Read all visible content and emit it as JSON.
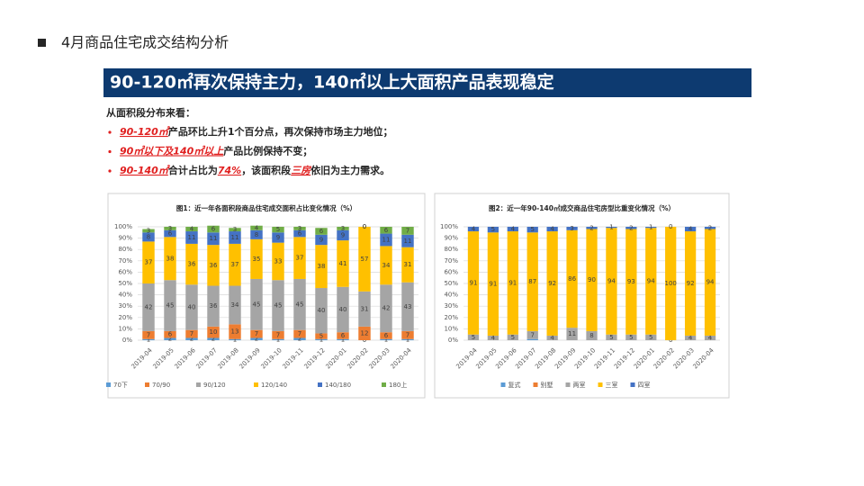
{
  "header": {
    "title": "4月商品住宅成交结构分析"
  },
  "banner": "90-120㎡再次保持主力，140㎡以上大面积产品表现稳定",
  "summary": {
    "heading": "从面积段分布来看：",
    "bullets": [
      [
        {
          "text": "90-120㎡",
          "highlight": true
        },
        {
          "text": "产品环比上升1个百分点，再次保持市场主力地位；"
        }
      ],
      [
        {
          "text": "90㎡以下及140㎡以上",
          "highlight": true
        },
        {
          "text": "产品比例保持不变；"
        }
      ],
      [
        {
          "text": "90-140㎡",
          "highlight": true
        },
        {
          "text": "合计占比为"
        },
        {
          "text": "74%",
          "highlight": true
        },
        {
          "text": "，该面积段"
        },
        {
          "text": "三房",
          "highlight": true
        },
        {
          "text": "依旧为主力需求。"
        }
      ]
    ]
  },
  "chart_data": [
    {
      "type": "stacked-bar",
      "title": "图1：近一年各面积段商品住宅成交面积占比变化情况（%）",
      "categories": [
        "2019-04",
        "2019-05",
        "2019-06",
        "2019-07",
        "2019-08",
        "2019-09",
        "2019-10",
        "2019-11",
        "2019-12",
        "2020-01",
        "2020-02",
        "2020-03",
        "2020-04"
      ],
      "series": [
        {
          "name": "70下",
          "color": "#5b9bd5",
          "labels": true,
          "values": [
            1,
            2,
            2,
            2,
            1,
            2,
            1,
            2,
            1,
            1,
            0,
            1,
            1
          ]
        },
        {
          "name": "70/90",
          "color": "#ed7d31",
          "labels": true,
          "values": [
            7,
            6,
            7,
            10,
            13,
            7,
            7,
            7,
            5,
            6,
            12,
            6,
            7
          ]
        },
        {
          "name": "90/120",
          "color": "#a5a5a5",
          "labels": true,
          "values": [
            42,
            45,
            40,
            36,
            34,
            45,
            45,
            45,
            40,
            40,
            31,
            42,
            43
          ]
        },
        {
          "name": "120/140",
          "color": "#ffc000",
          "labels": true,
          "values": [
            37,
            38,
            36,
            36,
            37,
            35,
            33,
            37,
            38,
            41,
            57,
            34,
            31
          ]
        },
        {
          "name": "140/180",
          "color": "#4472c4",
          "labels": true,
          "values": [
            8,
            6,
            11,
            11,
            11,
            8,
            9,
            6,
            9,
            9,
            0,
            11,
            11
          ]
        },
        {
          "name": "180上",
          "color": "#70ad47",
          "labels": true,
          "values": [
            3,
            3,
            4,
            6,
            3,
            4,
            5,
            3,
            6,
            3,
            0,
            6,
            7
          ]
        }
      ],
      "ylim": [
        0,
        100
      ],
      "yticks": [
        {
          "value": 0,
          "label": "0%"
        },
        {
          "value": 10,
          "label": "10%"
        },
        {
          "value": 20,
          "label": "20%"
        },
        {
          "value": 30,
          "label": "30%"
        },
        {
          "value": 40,
          "label": "40%"
        },
        {
          "value": 50,
          "label": "50%"
        },
        {
          "value": 60,
          "label": "60%"
        },
        {
          "value": 70,
          "label": "70%"
        },
        {
          "value": 80,
          "label": "80%"
        },
        {
          "value": 90,
          "label": "90%"
        },
        {
          "value": 100,
          "label": "100%"
        }
      ],
      "grid": true,
      "legend": "bottom"
    },
    {
      "type": "stacked-bar",
      "title": "图2：近一年90-140㎡成交商品住宅房型比重变化情况（%）",
      "categories": [
        "2019-04",
        "2019-05",
        "2019-06",
        "2019-07",
        "2019-08",
        "2019-09",
        "2019-10",
        "2019-11",
        "2019-12",
        "2020-01",
        "2020-02",
        "2020-03",
        "2020-04"
      ],
      "series": [
        {
          "name": "复式",
          "color": "#5b9bd5",
          "labels": false,
          "values": [
            0,
            0,
            0,
            1,
            0,
            0,
            0,
            0,
            0,
            0,
            0,
            0,
            0
          ]
        },
        {
          "name": "别墅",
          "color": "#ed7d31",
          "labels": false,
          "values": [
            0,
            0,
            0,
            0,
            0,
            0,
            0,
            0,
            0,
            0,
            0,
            0,
            0
          ]
        },
        {
          "name": "两室",
          "color": "#a5a5a5",
          "labels": true,
          "values": [
            5,
            4,
            5,
            7,
            4,
            11,
            8,
            5,
            5,
            5,
            0,
            4,
            4
          ]
        },
        {
          "name": "三室",
          "color": "#ffc000",
          "labels": true,
          "values": [
            91,
            91,
            91,
            87,
            92,
            86,
            90,
            94,
            93,
            94,
            100,
            92,
            94
          ]
        },
        {
          "name": "四室",
          "color": "#4472c4",
          "labels": true,
          "values": [
            4,
            5,
            4,
            5,
            4,
            3,
            2,
            1,
            2,
            1,
            0,
            4,
            2
          ]
        }
      ],
      "ylim": [
        0,
        100
      ],
      "yticks": [
        {
          "value": 0,
          "label": "0%"
        },
        {
          "value": 10,
          "label": "10%"
        },
        {
          "value": 20,
          "label": "20%"
        },
        {
          "value": 30,
          "label": "30%"
        },
        {
          "value": 40,
          "label": "40%"
        },
        {
          "value": 50,
          "label": "50%"
        },
        {
          "value": 60,
          "label": "60%"
        },
        {
          "value": 70,
          "label": "70%"
        },
        {
          "value": 80,
          "label": "80%"
        },
        {
          "value": 90,
          "label": "90%"
        },
        {
          "value": 100,
          "label": "100%"
        }
      ],
      "grid": true,
      "legend": "bottom"
    }
  ]
}
